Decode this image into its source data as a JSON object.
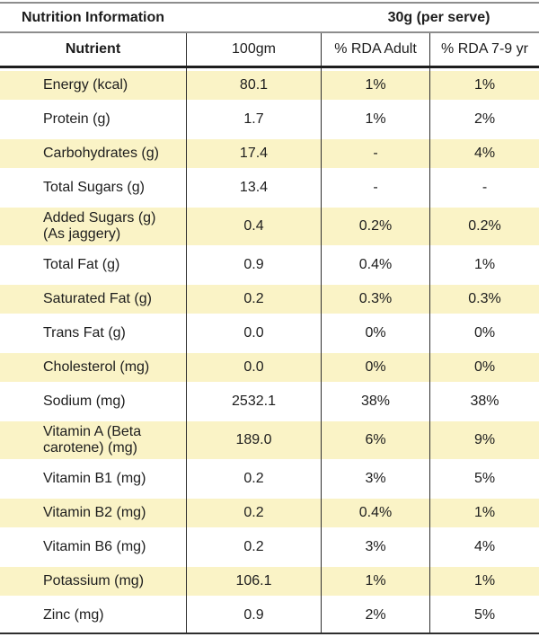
{
  "header": {
    "title": "Nutrition Information",
    "serve_label": "30g (per serve)"
  },
  "columns": [
    "Nutrient",
    "100gm",
    "% RDA Adult",
    "% RDA 7-9 yr"
  ],
  "rows": [
    {
      "nutrient": "Energy (kcal)",
      "per_100g": "80.1",
      "rda_adult": "1%",
      "rda_7_9yr": "1%",
      "highlighted": true,
      "tall": false
    },
    {
      "nutrient": "Protein (g)",
      "per_100g": "1.7",
      "rda_adult": "1%",
      "rda_7_9yr": "2%",
      "highlighted": false,
      "tall": false
    },
    {
      "nutrient": "Carbohydrates (g)",
      "per_100g": "17.4",
      "rda_adult": "-",
      "rda_7_9yr": "4%",
      "highlighted": true,
      "tall": false
    },
    {
      "nutrient": "Total Sugars (g)",
      "per_100g": "13.4",
      "rda_adult": "-",
      "rda_7_9yr": "-",
      "highlighted": false,
      "tall": false
    },
    {
      "nutrient": "Added Sugars (g)\n(As jaggery)",
      "per_100g": "0.4",
      "rda_adult": "0.2%",
      "rda_7_9yr": "0.2%",
      "highlighted": true,
      "tall": true
    },
    {
      "nutrient": "Total Fat (g)",
      "per_100g": "0.9",
      "rda_adult": "0.4%",
      "rda_7_9yr": "1%",
      "highlighted": false,
      "tall": false
    },
    {
      "nutrient": "Saturated Fat (g)",
      "per_100g": "0.2",
      "rda_adult": "0.3%",
      "rda_7_9yr": "0.3%",
      "highlighted": true,
      "tall": false
    },
    {
      "nutrient": "Trans Fat (g)",
      "per_100g": "0.0",
      "rda_adult": "0%",
      "rda_7_9yr": "0%",
      "highlighted": false,
      "tall": false
    },
    {
      "nutrient": "Cholesterol (mg)",
      "per_100g": "0.0",
      "rda_adult": "0%",
      "rda_7_9yr": "0%",
      "highlighted": true,
      "tall": false
    },
    {
      "nutrient": "Sodium (mg)",
      "per_100g": "2532.1",
      "rda_adult": "38%",
      "rda_7_9yr": "38%",
      "highlighted": false,
      "tall": false
    },
    {
      "nutrient": "Vitamin A (Beta\ncarotene) (mg)",
      "per_100g": "189.0",
      "rda_adult": "6%",
      "rda_7_9yr": "9%",
      "highlighted": true,
      "tall": true
    },
    {
      "nutrient": "Vitamin B1 (mg)",
      "per_100g": "0.2",
      "rda_adult": "3%",
      "rda_7_9yr": "5%",
      "highlighted": false,
      "tall": false
    },
    {
      "nutrient": "Vitamin B2 (mg)",
      "per_100g": "0.2",
      "rda_adult": "0.4%",
      "rda_7_9yr": "1%",
      "highlighted": true,
      "tall": false
    },
    {
      "nutrient": "Vitamin B6 (mg)",
      "per_100g": "0.2",
      "rda_adult": "3%",
      "rda_7_9yr": "4%",
      "highlighted": false,
      "tall": false
    },
    {
      "nutrient": "Potassium (mg)",
      "per_100g": "106.1",
      "rda_adult": "1%",
      "rda_7_9yr": "1%",
      "highlighted": true,
      "tall": false
    },
    {
      "nutrient": "Zinc (mg)",
      "per_100g": "0.9",
      "rda_adult": "2%",
      "rda_7_9yr": "5%",
      "highlighted": false,
      "tall": false
    }
  ],
  "colors": {
    "row_highlight": "#faf3c6",
    "border_gray": "#8d8d8d",
    "border_dark": "#1e1e1e",
    "vertical_line": "#2e2e2e",
    "text": "#1d1d1d"
  }
}
